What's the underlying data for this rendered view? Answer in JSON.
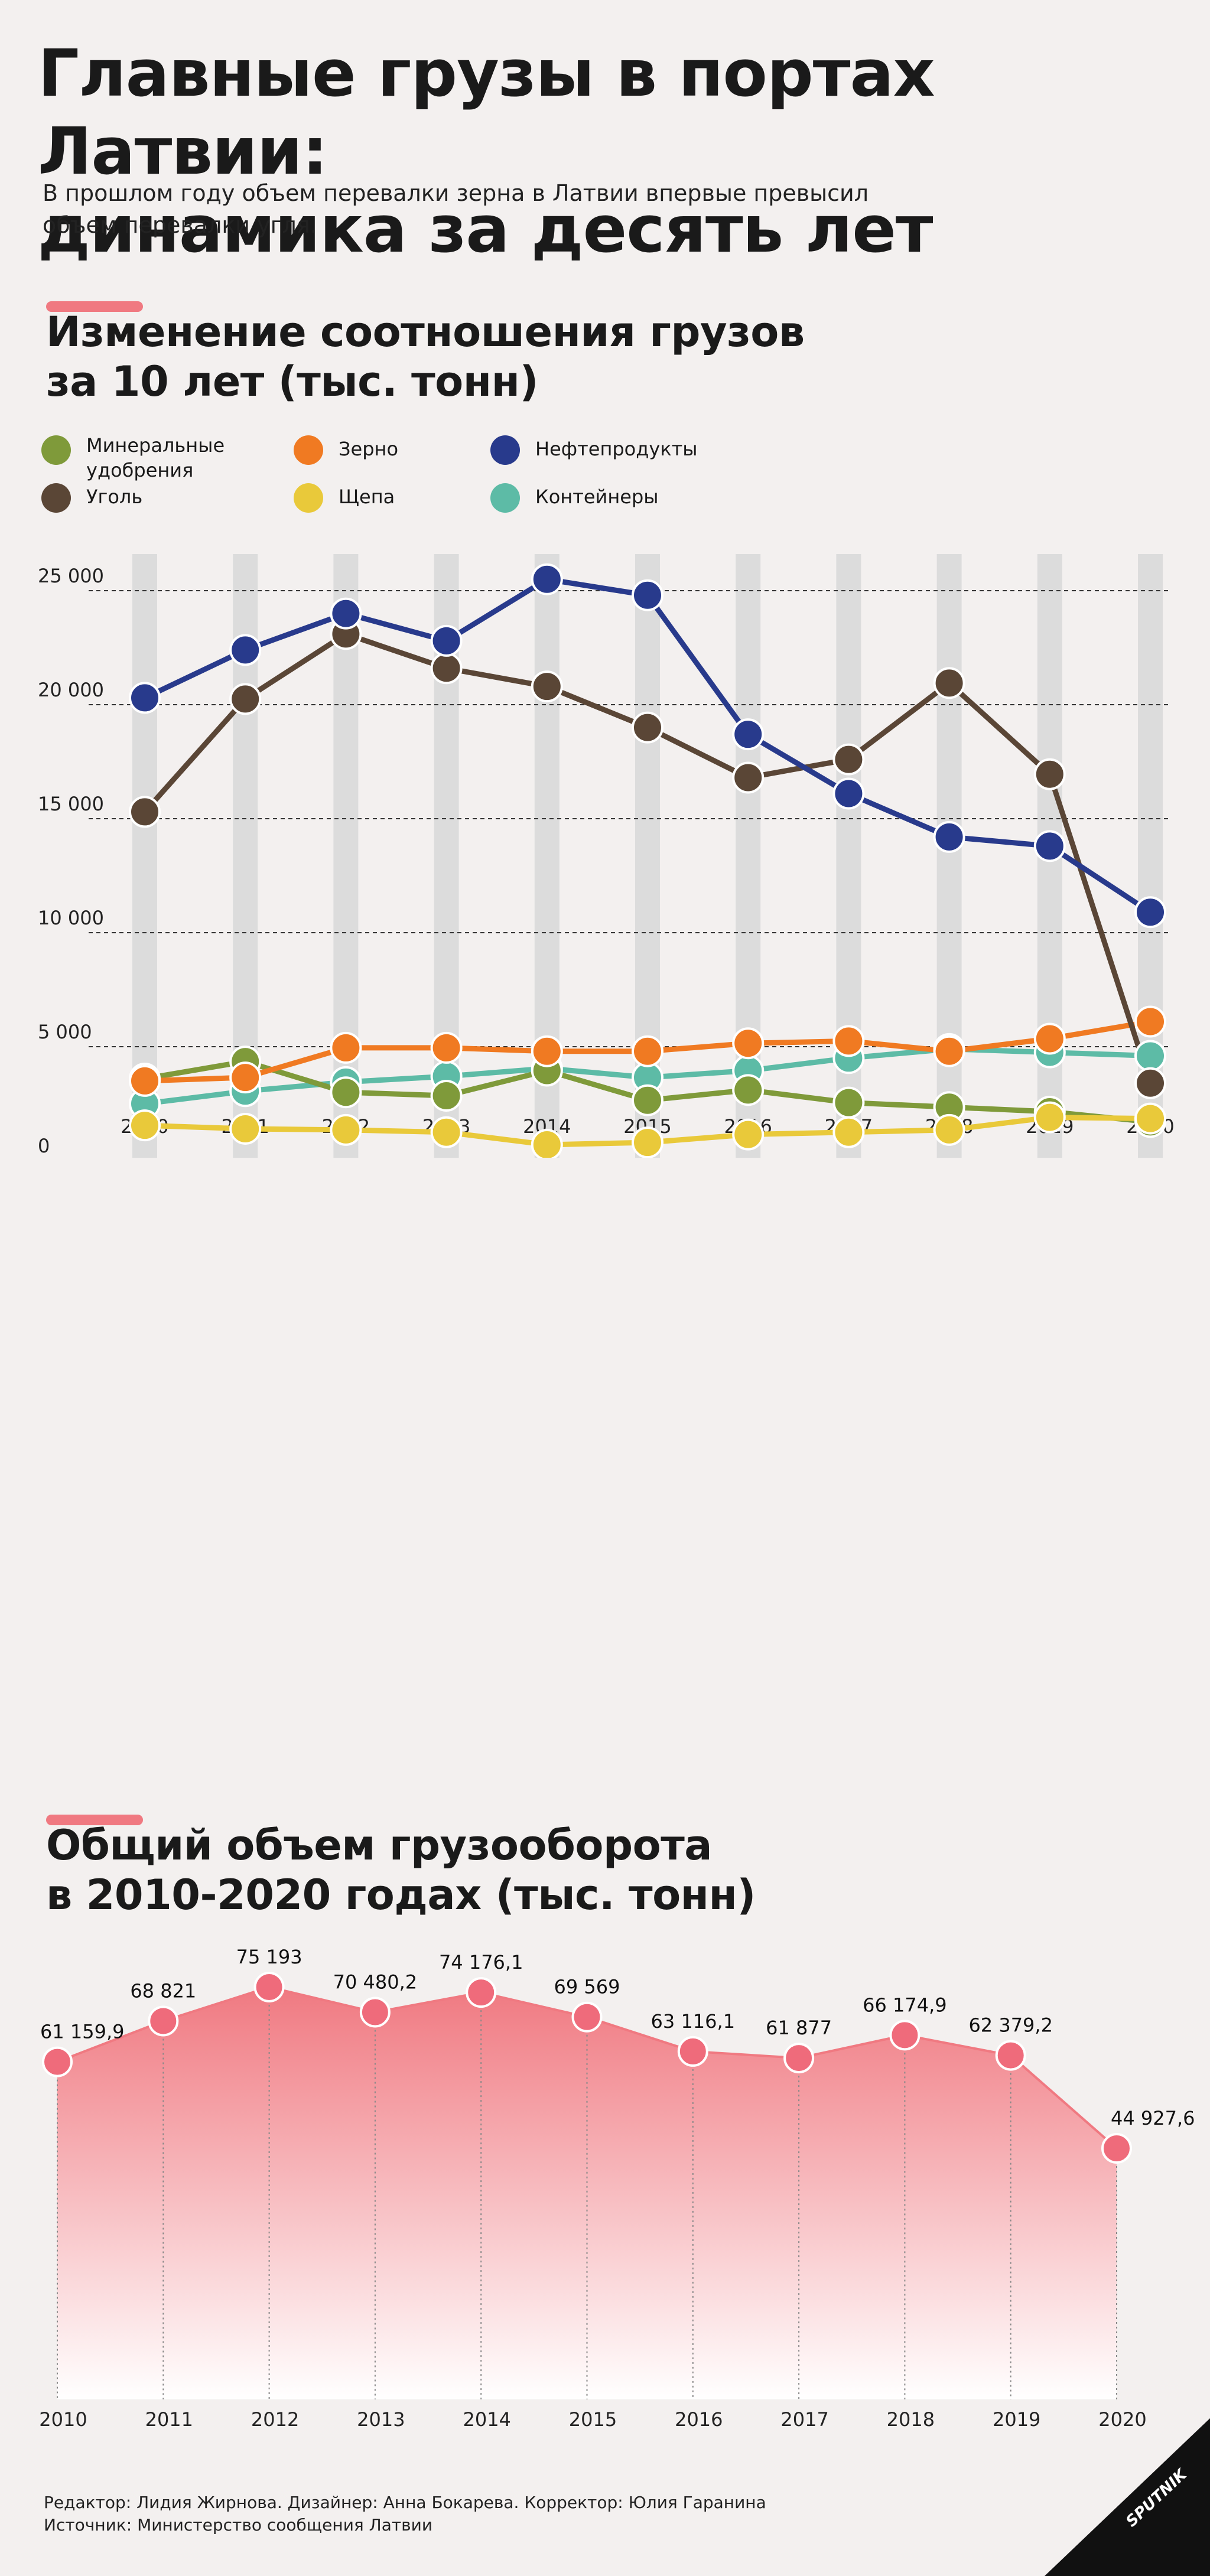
{
  "header": {
    "title_line1": "Главные грузы в портах Латвии:",
    "title_line2": "динамика за десять лет",
    "subtitle_line1": "В прошлом году объем перевалки зерна в Латвии впервые превысил",
    "subtitle_line2": "объем перевалки угля."
  },
  "section1": {
    "title_line1": "Изменение соотношения грузов",
    "title_line2": "за 10 лет (тыс. тонн)"
  },
  "legend": [
    {
      "label_line1": "Минеральные",
      "label_line2": "удобрения",
      "color": "#7f9a3a"
    },
    {
      "label_line1": "Уголь",
      "label_line2": "",
      "color": "#5a4636"
    },
    {
      "label_line1": "Зерно",
      "label_line2": "",
      "color": "#f07a22"
    },
    {
      "label_line1": "Щепа",
      "label_line2": "",
      "color": "#e9c93a"
    },
    {
      "label_line1": "Нефтепродукты",
      "label_line2": "",
      "color": "#283a8c"
    },
    {
      "label_line1": "Контейнеры",
      "label_line2": "",
      "color": "#5dbba6"
    }
  ],
  "section2": {
    "title_line1": "Общий объем грузооборота",
    "title_line2": "в 2010-2020 годах (тыс. тонн)"
  },
  "footer": {
    "line1": "Редактор: Лидия Жирнова. Дизайнер: Анна Бокарева. Корректор: Юлия Гаранина",
    "line2": "Источник: Министерство сообщения Латвии"
  },
  "logo_text": "SPUTNIK",
  "chart_data": [
    {
      "type": "line",
      "x": [
        "2010",
        "2011",
        "2012",
        "2013",
        "2014",
        "2015",
        "2016",
        "2017",
        "2018",
        "2019",
        "2020"
      ],
      "ylim": [
        0,
        25000
      ],
      "yticks": [
        0,
        5000,
        10000,
        15000,
        20000,
        25000
      ],
      "ytick_labels": [
        "0",
        "5 000",
        "10 000",
        "15 000",
        "20 000",
        "25 000"
      ],
      "grid": "dashed horizontal",
      "series": [
        {
          "name": "Контейнеры",
          "color": "#5dbba6",
          "values": [
            2500,
            3050,
            3450,
            3700,
            4050,
            3650,
            3950,
            4500,
            4900,
            4750,
            4600
          ]
        },
        {
          "name": "Минеральные удобрения",
          "color": "#7f9a3a",
          "values": [
            3600,
            4350,
            3000,
            2850,
            3950,
            2650,
            3100,
            2550,
            2350,
            2150,
            1700
          ]
        },
        {
          "name": "Щепа",
          "color": "#e9c93a",
          "values": [
            1550,
            1400,
            1350,
            1250,
            700,
            800,
            1150,
            1250,
            1350,
            1900,
            1850
          ]
        },
        {
          "name": "Зерно",
          "color": "#f07a22",
          "values": [
            3500,
            3650,
            4950,
            4950,
            4800,
            4800,
            5150,
            5250,
            4800,
            5350,
            6100
          ]
        },
        {
          "name": "Уголь",
          "color": "#5a4636",
          "values": [
            15300,
            20250,
            23100,
            21600,
            20800,
            19000,
            16800,
            17600,
            20950,
            16950,
            3400
          ]
        },
        {
          "name": "Нефтепродукты",
          "color": "#283a8c",
          "values": [
            20300,
            22400,
            24000,
            22800,
            25500,
            24800,
            18700,
            16100,
            14200,
            13800,
            10900
          ]
        }
      ]
    },
    {
      "type": "area",
      "x": [
        "2010",
        "2011",
        "2012",
        "2013",
        "2014",
        "2015",
        "2016",
        "2017",
        "2018",
        "2019",
        "2020"
      ],
      "values": [
        61159.9,
        68821,
        75193,
        70480.2,
        74176.1,
        69569,
        63116.1,
        61877,
        66174.9,
        62379.2,
        44927.6
      ],
      "value_labels": [
        "61 159,9",
        "68 821",
        "75 193",
        "70 480,2",
        "74 176,1",
        "69 569",
        "63 116,1",
        "61 877",
        "66 174,9",
        "62 379,2",
        "44 927,6"
      ],
      "color": "#f07981",
      "ylim": [
        0,
        75193
      ]
    }
  ]
}
